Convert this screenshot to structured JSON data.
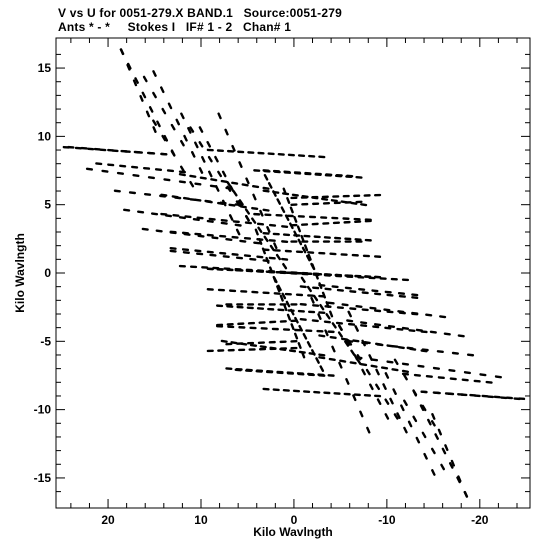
{
  "chart_data": {
    "type": "scatter",
    "title": "V vs U for 0051-279.X BAND.1   Source:0051-279",
    "subtitle": "Ants * - *     Stokes I   IF# 1 - 2   Chan# 1",
    "xlabel": "Kilo Wavlngth",
    "ylabel": "Kilo Wavlngth",
    "xlim": [
      25.6,
      -25.4
    ],
    "ylim": [
      -17.2,
      17.2
    ],
    "x_ticks": [
      20,
      10,
      0,
      -10,
      -20
    ],
    "x_tick_labels": [
      "20",
      "10",
      "0",
      "-10",
      "-20"
    ],
    "y_ticks": [
      15,
      10,
      5,
      0,
      -5,
      -10,
      -15
    ],
    "y_tick_labels": [
      "15",
      "10",
      "5",
      "0",
      "-5",
      "-10",
      "-15"
    ],
    "grid": false,
    "marker_color": "#000000",
    "tracks": [
      {
        "u": [
          18.5,
          13.0
        ],
        "v": [
          16.2,
          8.8
        ],
        "n": 8
      },
      {
        "u": [
          15.0,
          10.0
        ],
        "v": [
          14.6,
          7.5
        ],
        "n": 7
      },
      {
        "u": [
          12.0,
          6.0
        ],
        "v": [
          11.5,
          3.0
        ],
        "n": 9
      },
      {
        "u": [
          10.0,
          5.0
        ],
        "v": [
          10.5,
          4.0
        ],
        "n": 7
      },
      {
        "u": [
          24.0,
          14.0
        ],
        "v": [
          9.2,
          8.7
        ],
        "n": 8
      },
      {
        "u": [
          22.0,
          7.0
        ],
        "v": [
          7.6,
          6.2
        ],
        "n": 10
      },
      {
        "u": [
          19.0,
          6.0
        ],
        "v": [
          6.0,
          5.0
        ],
        "n": 9
      },
      {
        "u": [
          18.0,
          6.0
        ],
        "v": [
          4.6,
          3.5
        ],
        "n": 9
      },
      {
        "u": [
          16.0,
          4.0
        ],
        "v": [
          3.2,
          2.2
        ],
        "n": 9
      },
      {
        "u": [
          13.0,
          3.0
        ],
        "v": [
          1.6,
          0.9
        ],
        "n": 8
      },
      {
        "u": [
          9.0,
          -3.0
        ],
        "v": [
          9.0,
          8.5
        ],
        "n": 12
      },
      {
        "u": [
          4.0,
          -7.0
        ],
        "v": [
          7.5,
          7.0
        ],
        "n": 11
      },
      {
        "u": [
          3.0,
          -7.5
        ],
        "v": [
          6.0,
          5.0
        ],
        "n": 11
      },
      {
        "u": [
          4.0,
          -8.0
        ],
        "v": [
          4.3,
          3.9
        ],
        "n": 11
      },
      {
        "u": [
          3.0,
          -8.0
        ],
        "v": [
          2.9,
          2.4
        ],
        "n": 11
      },
      {
        "u": [
          3.0,
          -9.0
        ],
        "v": [
          1.7,
          1.2
        ],
        "n": 11
      },
      {
        "u": [
          9.0,
          -9.0
        ],
        "v": [
          0.3,
          -0.3
        ],
        "n": 18
      },
      {
        "u": [
          6.0,
          -12.0
        ],
        "v": [
          0.2,
          -0.5
        ],
        "n": 16
      },
      {
        "u": [
          7.0,
          0.0
        ],
        "v": [
          -2.3,
          -2.3
        ],
        "n": 7
      },
      {
        "u": [
          8.0,
          0.0
        ],
        "v": [
          -3.8,
          -3.5
        ],
        "n": 8
      },
      {
        "u": [
          7.0,
          0.0
        ],
        "v": [
          -5.2,
          -5.0
        ],
        "n": 7
      },
      {
        "u": [
          9.0,
          0.0
        ],
        "v": [
          -5.7,
          -5.5
        ],
        "n": 9
      },
      {
        "u": [
          6.0,
          -3.0
        ],
        "v": [
          -7.1,
          -7.5
        ],
        "n": 9
      },
      {
        "u": [
          -1.0,
          -13.0
        ],
        "v": [
          -1.0,
          -1.8
        ],
        "n": 10
      },
      {
        "u": [
          -1.0,
          -13.0
        ],
        "v": [
          -2.3,
          -3.0
        ],
        "n": 10
      },
      {
        "u": [
          -1.0,
          -14.0
        ],
        "v": [
          -3.4,
          -4.3
        ],
        "n": 11
      },
      {
        "u": [
          -3.0,
          -14.0
        ],
        "v": [
          -4.6,
          -5.7
        ],
        "n": 10
      },
      {
        "u": [
          -3.0,
          -12.0
        ],
        "v": [
          -6.2,
          -7.2
        ],
        "n": 9
      },
      {
        "u": [
          -12.0,
          -21.0
        ],
        "v": [
          -7.4,
          -8.0
        ],
        "n": 8
      },
      {
        "u": [
          -14.0,
          -24.5
        ],
        "v": [
          -8.7,
          -9.2
        ],
        "n": 9
      },
      {
        "u": [
          -2.0,
          -8.0
        ],
        "v": [
          -2.0,
          -11.5
        ],
        "n": 9
      },
      {
        "u": [
          -5.0,
          -11.0
        ],
        "v": [
          -4.0,
          -10.5
        ],
        "n": 7
      },
      {
        "u": [
          -11.0,
          -15.0
        ],
        "v": [
          -6.5,
          -11.0
        ],
        "n": 5
      },
      {
        "u": [
          -12.0,
          -16.0
        ],
        "v": [
          -9.5,
          -14.2
        ],
        "n": 5
      },
      {
        "u": [
          -15.0,
          -18.5
        ],
        "v": [
          -10.5,
          -16.2
        ],
        "n": 6
      },
      {
        "u": [
          4.0,
          -1.0
        ],
        "v": [
          3.0,
          -6.0
        ],
        "n": 14
      },
      {
        "u": [
          2.0,
          -3.0
        ],
        "v": [
          -0.5,
          -7.0
        ],
        "n": 12
      },
      {
        "u": [
          7.0,
          1.0
        ],
        "v": [
          6.5,
          0.5
        ],
        "n": 10
      }
    ]
  }
}
